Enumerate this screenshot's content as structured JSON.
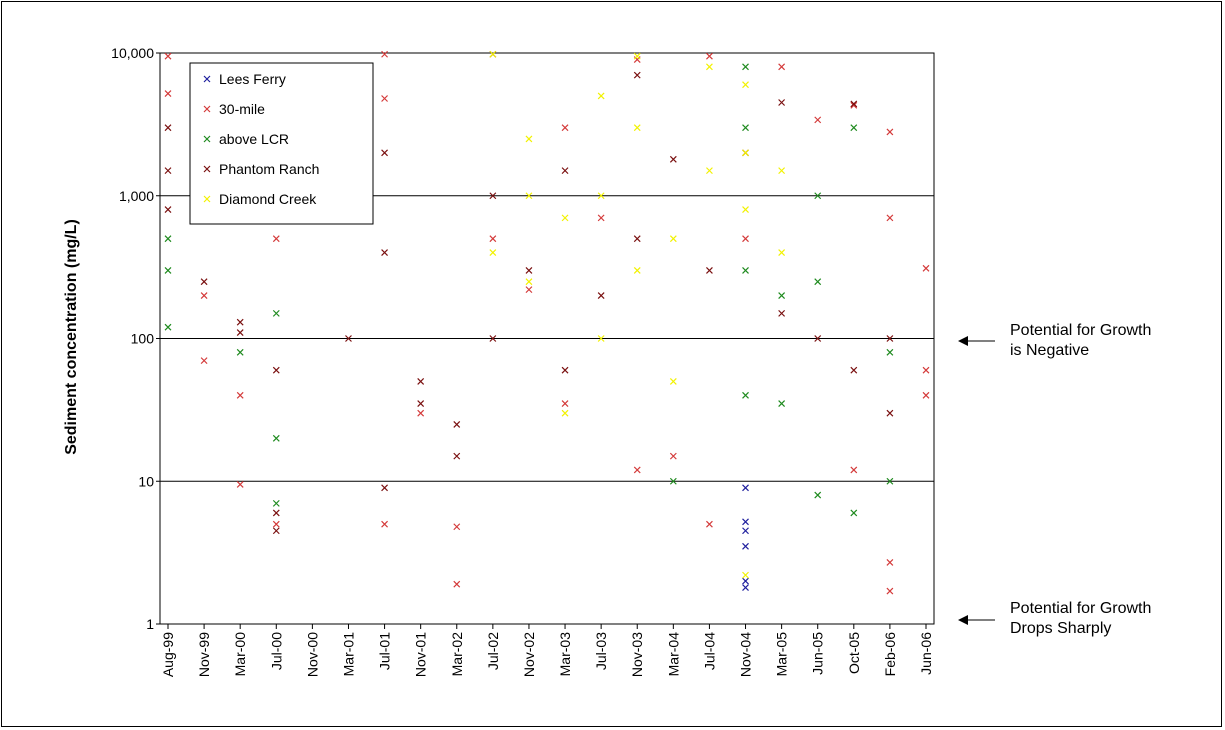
{
  "chart_data": {
    "type": "scatter",
    "title": "",
    "xlabel": "",
    "ylabel": "Sediment concentration (mg/L)",
    "y_scale": "log",
    "ylim": [
      1,
      10000
    ],
    "y_ticks": [
      "1",
      "10",
      "100",
      "1,000",
      "10,000"
    ],
    "x_ticks": [
      "Aug-99",
      "Nov-99",
      "Mar-00",
      "Jul-00",
      "Nov-00",
      "Mar-01",
      "Jul-01",
      "Nov-01",
      "Mar-02",
      "Jul-02",
      "Nov-02",
      "Mar-03",
      "Jul-03",
      "Nov-03",
      "Mar-04",
      "Jul-04",
      "Nov-04",
      "Mar-05",
      "Jun-05",
      "Oct-05",
      "Feb-06",
      "Jun-06"
    ],
    "grid": "horizontal major lines at 10, 100, 1,000",
    "legend_placement": "top-left",
    "marker": "x",
    "series": [
      {
        "name": "Lees Ferry",
        "color": "#1f1f9e",
        "points": [
          [
            "Nov-04",
            1.8
          ],
          [
            "Nov-04",
            2.0
          ],
          [
            "Nov-04",
            3.5
          ],
          [
            "Nov-04",
            4.5
          ],
          [
            "Nov-04",
            5.2
          ],
          [
            "Nov-04",
            9.0
          ]
        ]
      },
      {
        "name": "30-mile",
        "color": "#d43a3a",
        "points": [
          [
            "Aug-99",
            9500
          ],
          [
            "Aug-99",
            5200
          ],
          [
            "Nov-99",
            200
          ],
          [
            "Nov-99",
            70
          ],
          [
            "Mar-00",
            9.5
          ],
          [
            "Mar-00",
            40
          ],
          [
            "Jul-00",
            5
          ],
          [
            "Jul-00",
            500
          ],
          [
            "Jul-01",
            5
          ],
          [
            "Jul-01",
            9800
          ],
          [
            "Jul-01",
            4800
          ],
          [
            "Nov-01",
            30
          ],
          [
            "Mar-02",
            1.9
          ],
          [
            "Mar-02",
            4.8
          ],
          [
            "Jul-02",
            500
          ],
          [
            "Nov-02",
            220
          ],
          [
            "Mar-03",
            3000
          ],
          [
            "Mar-03",
            35
          ],
          [
            "Jul-03",
            700
          ],
          [
            "Nov-03",
            12
          ],
          [
            "Nov-03",
            9000
          ],
          [
            "Mar-04",
            15
          ],
          [
            "Jul-04",
            5
          ],
          [
            "Jul-04",
            9500
          ],
          [
            "Nov-04",
            500
          ],
          [
            "Mar-05",
            8000
          ],
          [
            "Jun-05",
            3400
          ],
          [
            "Oct-05",
            4300
          ],
          [
            "Oct-05",
            12
          ],
          [
            "Feb-06",
            1.7
          ],
          [
            "Feb-06",
            2.7
          ],
          [
            "Feb-06",
            2800
          ],
          [
            "Feb-06",
            700
          ],
          [
            "Jun-06",
            60
          ],
          [
            "Jun-06",
            310
          ],
          [
            "Jun-06",
            40
          ]
        ]
      },
      {
        "name": "above LCR",
        "color": "#1e8a1e",
        "points": [
          [
            "Aug-99",
            500
          ],
          [
            "Aug-99",
            300
          ],
          [
            "Aug-99",
            120
          ],
          [
            "Mar-00",
            80
          ],
          [
            "Jul-00",
            7
          ],
          [
            "Jul-00",
            20
          ],
          [
            "Jul-00",
            150
          ],
          [
            "Mar-04",
            10
          ],
          [
            "Nov-04",
            8000
          ],
          [
            "Nov-04",
            3000
          ],
          [
            "Nov-04",
            300
          ],
          [
            "Nov-04",
            40
          ],
          [
            "Mar-05",
            200
          ],
          [
            "Mar-05",
            35
          ],
          [
            "Jun-05",
            1000
          ],
          [
            "Jun-05",
            8
          ],
          [
            "Jun-05",
            250
          ],
          [
            "Oct-05",
            3000
          ],
          [
            "Oct-05",
            6
          ],
          [
            "Feb-06",
            80
          ],
          [
            "Feb-06",
            10
          ]
        ]
      },
      {
        "name": "Phantom Ranch",
        "color": "#7a1010",
        "points": [
          [
            "Aug-99",
            3000
          ],
          [
            "Aug-99",
            1500
          ],
          [
            "Aug-99",
            800
          ],
          [
            "Nov-99",
            250
          ],
          [
            "Mar-00",
            130
          ],
          [
            "Mar-00",
            110
          ],
          [
            "Jul-00",
            6
          ],
          [
            "Jul-00",
            4.5
          ],
          [
            "Jul-00",
            60
          ],
          [
            "Mar-01",
            100
          ],
          [
            "Jul-01",
            9
          ],
          [
            "Jul-01",
            2000
          ],
          [
            "Jul-01",
            400
          ],
          [
            "Nov-01",
            50
          ],
          [
            "Nov-01",
            35
          ],
          [
            "Mar-02",
            15
          ],
          [
            "Mar-02",
            25
          ],
          [
            "Jul-02",
            100
          ],
          [
            "Jul-02",
            1000
          ],
          [
            "Jul-02",
            9800
          ],
          [
            "Nov-02",
            300
          ],
          [
            "Mar-03",
            1500
          ],
          [
            "Mar-03",
            60
          ],
          [
            "Jul-03",
            200
          ],
          [
            "Nov-03",
            7000
          ],
          [
            "Nov-03",
            500
          ],
          [
            "Mar-04",
            1800
          ],
          [
            "Jul-04",
            300
          ],
          [
            "Nov-04",
            2000
          ],
          [
            "Mar-05",
            4500
          ],
          [
            "Mar-05",
            150
          ],
          [
            "Jun-05",
            100
          ],
          [
            "Oct-05",
            4400
          ],
          [
            "Oct-05",
            60
          ],
          [
            "Feb-06",
            100
          ],
          [
            "Feb-06",
            30
          ]
        ]
      },
      {
        "name": "Diamond Creek",
        "color": "#f2f200",
        "points": [
          [
            "Jul-02",
            400
          ],
          [
            "Jul-02",
            9800
          ],
          [
            "Nov-02",
            2500
          ],
          [
            "Nov-02",
            1000
          ],
          [
            "Nov-02",
            250
          ],
          [
            "Mar-03",
            700
          ],
          [
            "Mar-03",
            30
          ],
          [
            "Jul-03",
            5000
          ],
          [
            "Jul-03",
            1000
          ],
          [
            "Jul-03",
            100
          ],
          [
            "Nov-03",
            9500
          ],
          [
            "Nov-03",
            3000
          ],
          [
            "Nov-03",
            300
          ],
          [
            "Mar-04",
            500
          ],
          [
            "Mar-04",
            50
          ],
          [
            "Jul-04",
            8000
          ],
          [
            "Jul-04",
            1500
          ],
          [
            "Nov-04",
            6000
          ],
          [
            "Nov-04",
            2000
          ],
          [
            "Nov-04",
            800
          ],
          [
            "Nov-04",
            2.2
          ],
          [
            "Mar-05",
            1500
          ],
          [
            "Mar-05",
            400
          ]
        ]
      }
    ],
    "annotations": [
      {
        "text_lines": [
          "Potential for Growth",
          "is Negative"
        ],
        "points_to": 100
      },
      {
        "text_lines": [
          "Potential for Growth",
          "Drops Sharply"
        ],
        "points_to": 1
      }
    ]
  }
}
